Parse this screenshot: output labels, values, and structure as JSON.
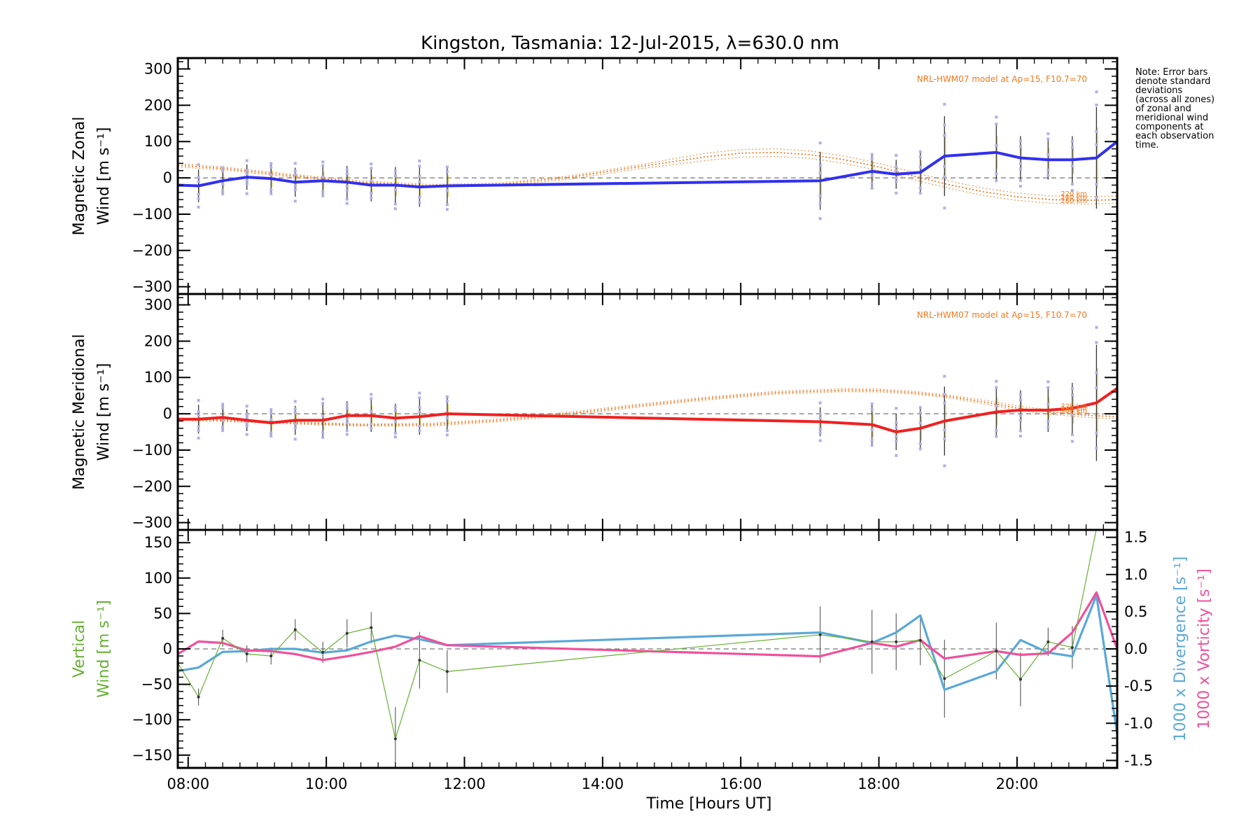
{
  "chart_data": {
    "type": "line",
    "title": "Kingston, Tasmania: 12-Jul-2015, λ=630.0 nm",
    "xlabel": "Time [Hours UT]",
    "x_ticks": [
      "08:00",
      "10:00",
      "12:00",
      "14:00",
      "16:00",
      "18:00",
      "20:00"
    ],
    "x_tick_hours": [
      8,
      10,
      12,
      14,
      16,
      18,
      20
    ],
    "xlim": [
      7.85,
      21.45
    ],
    "note_lines": [
      "Note: Error bars",
      "denote standard",
      "deviations",
      "(across all zones)",
      "of zonal and",
      "meridional wind",
      "components at",
      "each observation",
      "time."
    ],
    "colors": {
      "zonal": "#3030f0",
      "meridional": "#f02020",
      "vertical": "#66b032",
      "divergence": "#5aa8d8",
      "vorticity": "#f0509a",
      "model": "#f07820",
      "samples": "#b0b0e8"
    },
    "panels": [
      {
        "id": "zonal",
        "ylabel_line1": "Magnetic Zonal",
        "ylabel_line2": "Wind [m s⁻¹]",
        "ylim": [
          -320,
          330
        ],
        "y_ticks": [
          300,
          200,
          100,
          0,
          -100,
          -200,
          -300
        ],
        "model_note": "NRL-HWM07 model at Ap=15, F10.7=70",
        "altitude_labels": [
          "220 km",
          "240 km",
          "260 km"
        ],
        "series": [
          {
            "kind": "wind",
            "x": [
              7.85,
              8.15,
              8.5,
              8.85,
              9.2,
              9.55,
              9.95,
              10.3,
              10.65,
              11.0,
              11.35,
              11.75,
              17.15,
              17.9,
              18.25,
              18.6,
              18.95,
              19.7,
              20.05,
              20.45,
              20.8,
              21.15,
              21.45
            ],
            "y": [
              -20,
              -22,
              -8,
              2,
              -2,
              -12,
              -8,
              -12,
              -20,
              -20,
              -25,
              -22,
              -8,
              18,
              10,
              15,
              60,
              70,
              55,
              50,
              50,
              55,
              100
            ],
            "err": [
              0,
              45,
              35,
              35,
              40,
              40,
              40,
              45,
              45,
              50,
              55,
              50,
              80,
              45,
              40,
              55,
              110,
              75,
              60,
              55,
              65,
              140,
              0
            ]
          }
        ],
        "model": [
          {
            "x": [
              7.85,
              8.5,
              9.5,
              10.5,
              11.5,
              12.5,
              13.5,
              14.5,
              15.5,
              16.0,
              16.5,
              17.0,
              17.5,
              18.0,
              18.5,
              19.0,
              19.5,
              20.0,
              20.5,
              21.0,
              21.45
            ],
            "y": [
              40,
              30,
              10,
              -8,
              -18,
              -14,
              5,
              35,
              68,
              78,
              80,
              74,
              60,
              40,
              15,
              -8,
              -28,
              -42,
              -50,
              -52,
              -50
            ]
          },
          {
            "x": [
              7.85,
              8.5,
              9.5,
              10.5,
              11.5,
              12.5,
              13.5,
              14.5,
              15.5,
              16.0,
              16.5,
              17.0,
              17.5,
              18.0,
              18.5,
              19.0,
              19.5,
              20.0,
              20.5,
              21.0,
              21.45
            ],
            "y": [
              35,
              26,
              6,
              -12,
              -22,
              -18,
              1,
              30,
              58,
              68,
              70,
              64,
              50,
              30,
              5,
              -18,
              -38,
              -52,
              -60,
              -62,
              -60
            ]
          },
          {
            "x": [
              7.85,
              8.5,
              9.5,
              10.5,
              11.5,
              12.5,
              13.5,
              14.5,
              15.5,
              16.0,
              16.5,
              17.0,
              17.5,
              18.0,
              18.5,
              19.0,
              19.5,
              20.0,
              20.5,
              21.0,
              21.45
            ],
            "y": [
              30,
              22,
              2,
              -16,
              -26,
              -22,
              -4,
              24,
              48,
              57,
              59,
              54,
              40,
              20,
              -5,
              -28,
              -48,
              -62,
              -70,
              -72,
              -70
            ]
          }
        ]
      },
      {
        "id": "meridional",
        "ylabel_line1": "Magnetic Meridional",
        "ylabel_line2": "Wind [m s⁻¹]",
        "ylim": [
          -320,
          330
        ],
        "y_ticks": [
          300,
          200,
          100,
          0,
          -100,
          -200,
          -300
        ],
        "model_note": "NRL-HWM07 model at Ap=15, F10.7=70",
        "altitude_labels": [
          "220 km",
          "240 km",
          "260 km"
        ],
        "series": [
          {
            "kind": "wind",
            "x": [
              7.85,
              8.15,
              8.5,
              8.85,
              9.2,
              9.55,
              9.95,
              10.3,
              10.65,
              11.0,
              11.35,
              11.75,
              17.15,
              17.9,
              18.25,
              18.6,
              18.95,
              19.7,
              20.05,
              20.45,
              20.8,
              21.15,
              21.45
            ],
            "y": [
              -15,
              -15,
              -10,
              -18,
              -25,
              -18,
              -18,
              -5,
              -5,
              -12,
              -8,
              0,
              -22,
              -30,
              -50,
              -40,
              -20,
              5,
              10,
              10,
              15,
              30,
              70
            ],
            "err": [
              0,
              40,
              35,
              30,
              35,
              40,
              45,
              40,
              45,
              40,
              50,
              45,
              40,
              55,
              50,
              55,
              95,
              65,
              55,
              60,
              70,
              160,
              0
            ]
          }
        ],
        "model": [
          {
            "x": [
              7.85,
              8.5,
              9.5,
              10.5,
              11.5,
              12.5,
              13.5,
              14.5,
              15.5,
              16.5,
              17.5,
              18.0,
              18.5,
              19.0,
              19.5,
              20.0,
              20.5,
              21.0,
              21.45
            ],
            "y": [
              -12,
              -15,
              -22,
              -28,
              -26,
              -14,
              4,
              26,
              46,
              62,
              69,
              68,
              62,
              52,
              38,
              22,
              10,
              2,
              -2
            ]
          },
          {
            "x": [
              7.85,
              8.5,
              9.5,
              10.5,
              11.5,
              12.5,
              13.5,
              14.5,
              15.5,
              16.5,
              17.5,
              18.0,
              18.5,
              19.0,
              19.5,
              20.0,
              20.5,
              21.0,
              21.45
            ],
            "y": [
              -15,
              -18,
              -25,
              -31,
              -30,
              -18,
              0,
              22,
              42,
              58,
              65,
              64,
              58,
              48,
              33,
              16,
              4,
              -4,
              -8
            ]
          },
          {
            "x": [
              7.85,
              8.5,
              9.5,
              10.5,
              11.5,
              12.5,
              13.5,
              14.5,
              15.5,
              16.5,
              17.5,
              18.0,
              18.5,
              19.0,
              19.5,
              20.0,
              20.5,
              21.0,
              21.45
            ],
            "y": [
              -18,
              -21,
              -28,
              -34,
              -34,
              -22,
              -4,
              18,
              38,
              54,
              61,
              60,
              54,
              44,
              28,
              10,
              -2,
              -10,
              -14
            ]
          }
        ]
      },
      {
        "id": "vertical",
        "ylabel_line1": "Vertical",
        "ylabel_line2": "Wind [m s⁻¹]",
        "ylim": [
          -168,
          168
        ],
        "y_ticks": [
          150,
          100,
          50,
          0,
          -50,
          -100,
          -150
        ],
        "right_ylabel_blue": "1000 x Divergence [s⁻¹]",
        "right_ylabel_pink": "1000 x Vorticity [s⁻¹]",
        "right_ylim": [
          -1.6,
          1.6
        ],
        "right_ticks": [
          "1.5",
          "1.0",
          "0.5",
          "0.0",
          "-0.5",
          "-1.0",
          "-1.5"
        ],
        "right_tick_values": [
          1.5,
          1.0,
          0.5,
          0.0,
          -0.5,
          -1.0,
          -1.5
        ],
        "series": [
          {
            "name": "Vertical",
            "axis": "left",
            "x": [
              7.85,
              8.15,
              8.5,
              8.85,
              9.2,
              9.55,
              9.95,
              10.3,
              10.65,
              11.0,
              11.35,
              11.75,
              17.15,
              17.9,
              18.25,
              18.6,
              18.95,
              19.7,
              20.05,
              20.45,
              20.8,
              21.15
            ],
            "y": [
              -20,
              -68,
              15,
              -7,
              -10,
              27,
              -5,
              22,
              30,
              -127,
              -16,
              -32,
              20,
              10,
              10,
              12,
              -42,
              -3,
              -43,
              10,
              2,
              170
            ],
            "err": [
              0,
              12,
              12,
              12,
              12,
              15,
              15,
              20,
              22,
              45,
              40,
              30,
              40,
              45,
              40,
              35,
              55,
              40,
              38,
              20,
              30,
              0
            ]
          },
          {
            "name": "1000 x Divergence",
            "axis": "right",
            "x": [
              7.85,
              8.15,
              8.5,
              8.85,
              9.2,
              9.55,
              9.95,
              10.3,
              10.65,
              11.0,
              11.35,
              11.75,
              17.15,
              17.9,
              18.25,
              18.6,
              18.95,
              19.7,
              20.05,
              20.45,
              20.8,
              21.15,
              21.45
            ],
            "y": [
              -0.3,
              -0.25,
              -0.04,
              -0.03,
              0.0,
              0.0,
              -0.05,
              -0.02,
              0.1,
              0.18,
              0.13,
              0.05,
              0.22,
              0.08,
              0.22,
              0.45,
              -0.55,
              -0.3,
              0.12,
              -0.05,
              -0.1,
              0.72,
              -1.15
            ]
          },
          {
            "name": "1000 x Vorticity",
            "axis": "right",
            "x": [
              7.85,
              8.15,
              8.5,
              8.85,
              9.2,
              9.55,
              9.95,
              10.3,
              10.65,
              11.0,
              11.35,
              11.75,
              17.15,
              17.9,
              18.25,
              18.6,
              18.95,
              19.7,
              20.05,
              20.45,
              20.8,
              21.15,
              21.45
            ],
            "y": [
              -0.07,
              0.1,
              0.08,
              -0.02,
              -0.03,
              -0.07,
              -0.15,
              -0.1,
              -0.04,
              0.03,
              0.17,
              0.05,
              -0.1,
              0.08,
              0.03,
              0.12,
              -0.13,
              -0.03,
              -0.08,
              -0.06,
              0.22,
              0.76,
              0.0
            ]
          }
        ]
      }
    ]
  }
}
